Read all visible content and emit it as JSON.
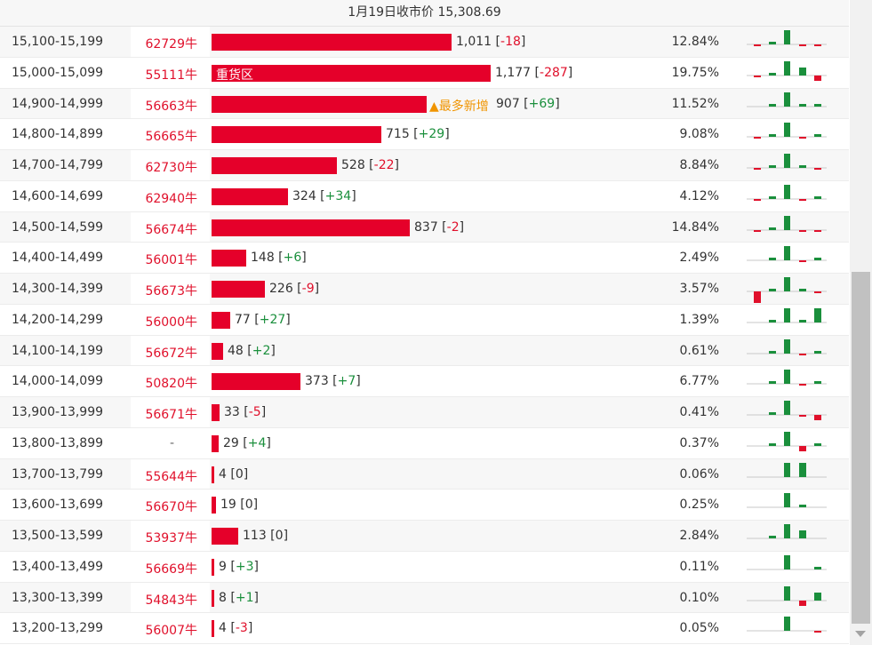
{
  "header": {
    "title": "1月19日收市价 15,308.69"
  },
  "colors": {
    "bar": "#e5002a",
    "negative": "#e0102b",
    "positive": "#1a8f3c",
    "badge": "#f09400"
  },
  "max_volume": 1177,
  "rows": [
    {
      "range": "15,100-15,199",
      "shares": "62729牛",
      "volume": "1,011",
      "change": "-18",
      "pct": "12.84%",
      "spark": [
        -1,
        1,
        3,
        -1,
        -1
      ]
    },
    {
      "range": "15,000-15,099",
      "shares": "55111牛",
      "volume": "1,177",
      "change": "-287",
      "pct": "19.75%",
      "label": "重货区",
      "spark": [
        -1,
        1,
        3,
        2,
        -2
      ]
    },
    {
      "range": "14,900-14,999",
      "shares": "56663牛",
      "volume": "907",
      "change": "+69",
      "pct": "11.52%",
      "badge": "▲最多新增",
      "spark": [
        0,
        1,
        3,
        1,
        1
      ]
    },
    {
      "range": "14,800-14,899",
      "shares": "56665牛",
      "volume": "715",
      "change": "+29",
      "pct": "9.08%",
      "spark": [
        -1,
        1,
        3,
        -1,
        1
      ]
    },
    {
      "range": "14,700-14,799",
      "shares": "62730牛",
      "volume": "528",
      "change": "-22",
      "pct": "8.84%",
      "spark": [
        -1,
        1,
        3,
        1,
        -1
      ]
    },
    {
      "range": "14,600-14,699",
      "shares": "62940牛",
      "volume": "324",
      "change": "+34",
      "pct": "4.12%",
      "spark": [
        -1,
        1,
        3,
        -1,
        1
      ]
    },
    {
      "range": "14,500-14,599",
      "shares": "56674牛",
      "volume": "837",
      "change": "-2",
      "pct": "14.84%",
      "spark": [
        -1,
        1,
        3,
        -1,
        -1
      ]
    },
    {
      "range": "14,400-14,499",
      "shares": "56001牛",
      "volume": "148",
      "change": "+6",
      "pct": "2.49%",
      "spark": [
        0,
        1,
        3,
        -1,
        1
      ]
    },
    {
      "range": "14,300-14,399",
      "shares": "56673牛",
      "volume": "226",
      "change": "-9",
      "pct": "3.57%",
      "spark": [
        -3,
        1,
        3,
        1,
        -1
      ]
    },
    {
      "range": "14,200-14,299",
      "shares": "56000牛",
      "volume": "77",
      "change": "+27",
      "pct": "1.39%",
      "spark": [
        0,
        1,
        3,
        1,
        3
      ]
    },
    {
      "range": "14,100-14,199",
      "shares": "56672牛",
      "volume": "48",
      "change": "+2",
      "pct": "0.61%",
      "spark": [
        0,
        1,
        3,
        -1,
        1
      ]
    },
    {
      "range": "14,000-14,099",
      "shares": "50820牛",
      "volume": "373",
      "change": "+7",
      "pct": "6.77%",
      "spark": [
        0,
        1,
        3,
        -1,
        1
      ]
    },
    {
      "range": "13,900-13,999",
      "shares": "56671牛",
      "volume": "33",
      "change": "-5",
      "pct": "0.41%",
      "spark": [
        0,
        1,
        3,
        -1,
        -2
      ]
    },
    {
      "range": "13,800-13,899",
      "shares": "-",
      "volume": "29",
      "change": "+4",
      "pct": "0.37%",
      "spark": [
        0,
        1,
        3,
        -2,
        1
      ]
    },
    {
      "range": "13,700-13,799",
      "shares": "55644牛",
      "volume": "4",
      "change": "0",
      "pct": "0.06%",
      "spark": [
        0,
        0,
        3,
        3,
        0
      ]
    },
    {
      "range": "13,600-13,699",
      "shares": "56670牛",
      "volume": "19",
      "change": "0",
      "pct": "0.25%",
      "spark": [
        0,
        0,
        3,
        1,
        0
      ]
    },
    {
      "range": "13,500-13,599",
      "shares": "53937牛",
      "volume": "113",
      "change": "0",
      "pct": "2.84%",
      "spark": [
        0,
        1,
        3,
        2,
        0
      ]
    },
    {
      "range": "13,400-13,499",
      "shares": "56669牛",
      "volume": "9",
      "change": "+3",
      "pct": "0.11%",
      "spark": [
        0,
        0,
        3,
        0,
        1
      ]
    },
    {
      "range": "13,300-13,399",
      "shares": "54843牛",
      "volume": "8",
      "change": "+1",
      "pct": "0.10%",
      "spark": [
        0,
        0,
        3,
        -2,
        2
      ]
    },
    {
      "range": "13,200-13,299",
      "shares": "56007牛",
      "volume": "4",
      "change": "-3",
      "pct": "0.05%",
      "spark": [
        0,
        0,
        3,
        0,
        -1
      ]
    }
  ]
}
